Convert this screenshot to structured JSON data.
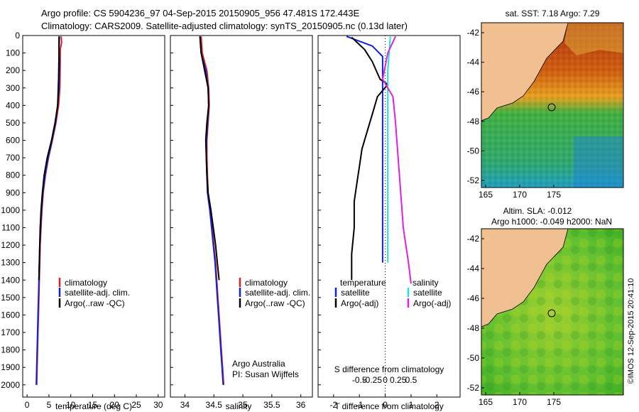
{
  "header": {
    "line1": "Argo profile: CS 5904236_97 04-Sep-2015 20150905_956 47.481S 172.443E",
    "line2": "Climatology: CARS2009. Satellite-adjusted climatology: synTS_20150905.nc (0.13d later)"
  },
  "colors": {
    "climatology": "#e02020",
    "satellite": "#1020e0",
    "argo": "#000000",
    "sat_salinity": "#20e0e0",
    "argo_salinity": "#e020e0"
  },
  "chart_data": [
    {
      "type": "line",
      "name": "temperature",
      "xlabel": "temperature (deg C)",
      "ylabel": "",
      "xlim": [
        -1,
        31.5
      ],
      "ylim": [
        0,
        2070
      ],
      "x_ticks": [
        "0",
        "5",
        "10",
        "15",
        "20",
        "25",
        "30"
      ],
      "y_ticks": [
        "0",
        "100",
        "200",
        "300",
        "400",
        "500",
        "600",
        "700",
        "800",
        "900",
        "1000",
        "1100",
        "1200",
        "1300",
        "1400",
        "1500",
        "1600",
        "1700",
        "1800",
        "1900",
        "2000"
      ],
      "legend": [
        "climatology",
        "satellite-adj. clim.",
        "Argo(..raw -QC)"
      ],
      "series": [
        {
          "color_key": "climatology",
          "points": [
            [
              7.8,
              5
            ],
            [
              7.9,
              40
            ],
            [
              7.6,
              80
            ],
            [
              7.6,
              150
            ],
            [
              7.5,
              300
            ],
            [
              7.2,
              400
            ],
            [
              6.6,
              500
            ],
            [
              5.8,
              600
            ],
            [
              4.9,
              700
            ],
            [
              4.2,
              800
            ],
            [
              3.7,
              900
            ],
            [
              3.4,
              1000
            ],
            [
              3.2,
              1100
            ],
            [
              3.0,
              1200
            ],
            [
              2.9,
              1300
            ],
            [
              2.8,
              1400
            ],
            [
              2.7,
              1500
            ],
            [
              2.6,
              1600
            ],
            [
              2.5,
              1700
            ],
            [
              2.4,
              1800
            ],
            [
              2.3,
              1900
            ],
            [
              2.2,
              2000
            ]
          ]
        },
        {
          "color_key": "satellite",
          "points": [
            [
              7.4,
              5
            ],
            [
              7.3,
              80
            ],
            [
              7.4,
              150
            ],
            [
              7.3,
              300
            ],
            [
              7.0,
              400
            ],
            [
              6.5,
              500
            ],
            [
              5.7,
              600
            ],
            [
              4.8,
              700
            ],
            [
              4.1,
              800
            ],
            [
              3.6,
              900
            ],
            [
              3.3,
              1000
            ],
            [
              3.1,
              1100
            ],
            [
              2.9,
              1200
            ],
            [
              2.8,
              1300
            ],
            [
              2.7,
              1400
            ],
            [
              2.6,
              1500
            ],
            [
              2.5,
              1600
            ],
            [
              2.4,
              1700
            ],
            [
              2.3,
              1800
            ],
            [
              2.2,
              1900
            ],
            [
              2.1,
              2000
            ]
          ]
        },
        {
          "color_key": "argo",
          "points": [
            [
              7.3,
              5
            ],
            [
              7.3,
              100
            ],
            [
              7.2,
              250
            ],
            [
              7.0,
              400
            ],
            [
              6.4,
              500
            ],
            [
              5.6,
              600
            ],
            [
              4.6,
              700
            ],
            [
              3.9,
              800
            ],
            [
              3.5,
              900
            ],
            [
              3.2,
              1000
            ],
            [
              3.0,
              1100
            ],
            [
              2.9,
              1200
            ],
            [
              2.8,
              1300
            ],
            [
              2.7,
              1400
            ]
          ]
        }
      ]
    },
    {
      "type": "line",
      "name": "salinity",
      "xlabel": "salinity",
      "xlim": [
        33.75,
        36.2
      ],
      "ylim": [
        0,
        2070
      ],
      "x_ticks": [
        "34",
        "34.5",
        "35",
        "35.5",
        "36"
      ],
      "legend": [
        "climatology",
        "satellite-adj. clim.",
        "Argo(..raw -QC)"
      ],
      "annotation": [
        "Argo Australia",
        "PI: Susan Wijffels"
      ],
      "series": [
        {
          "color_key": "climatology",
          "points": [
            [
              34.28,
              5
            ],
            [
              34.3,
              100
            ],
            [
              34.38,
              200
            ],
            [
              34.41,
              300
            ],
            [
              34.42,
              400
            ],
            [
              34.4,
              500
            ],
            [
              34.38,
              600
            ],
            [
              34.38,
              700
            ],
            [
              34.39,
              800
            ],
            [
              34.4,
              900
            ],
            [
              34.44,
              1000
            ],
            [
              34.47,
              1100
            ],
            [
              34.5,
              1200
            ],
            [
              34.53,
              1300
            ],
            [
              34.55,
              1400
            ],
            [
              34.57,
              1500
            ],
            [
              34.59,
              1600
            ],
            [
              34.61,
              1700
            ],
            [
              34.63,
              1800
            ],
            [
              34.65,
              1900
            ],
            [
              34.67,
              2000
            ]
          ]
        },
        {
          "color_key": "satellite",
          "points": [
            [
              34.26,
              5
            ],
            [
              34.28,
              100
            ],
            [
              34.36,
              200
            ],
            [
              34.4,
              300
            ],
            [
              34.41,
              400
            ],
            [
              34.39,
              500
            ],
            [
              34.37,
              600
            ],
            [
              34.37,
              700
            ],
            [
              34.38,
              800
            ],
            [
              34.39,
              900
            ],
            [
              34.43,
              1000
            ],
            [
              34.46,
              1100
            ],
            [
              34.49,
              1200
            ],
            [
              34.52,
              1300
            ],
            [
              34.54,
              1400
            ],
            [
              34.56,
              1500
            ],
            [
              34.58,
              1600
            ],
            [
              34.6,
              1700
            ],
            [
              34.62,
              1800
            ],
            [
              34.64,
              1900
            ],
            [
              34.66,
              2000
            ]
          ]
        },
        {
          "color_key": "argo",
          "points": [
            [
              34.26,
              5
            ],
            [
              34.28,
              100
            ],
            [
              34.34,
              200
            ],
            [
              34.4,
              300
            ],
            [
              34.41,
              400
            ],
            [
              34.38,
              500
            ],
            [
              34.36,
              600
            ],
            [
              34.37,
              700
            ],
            [
              34.38,
              800
            ],
            [
              34.4,
              900
            ],
            [
              34.45,
              1000
            ],
            [
              34.49,
              1100
            ],
            [
              34.53,
              1200
            ],
            [
              34.56,
              1300
            ],
            [
              34.59,
              1400
            ]
          ]
        }
      ]
    },
    {
      "type": "line",
      "name": "difference",
      "xlabel": "T difference from climatology",
      "xlabel_top": "S difference from climatology",
      "xlim": [
        -2.6,
        2.9
      ],
      "ylim": [
        0,
        2070
      ],
      "x_ticks": [
        "-2",
        "-1",
        "0",
        "1",
        "2"
      ],
      "x_ticks_top": [
        "-0.5",
        "-0.25",
        "0",
        "0.25",
        "0.5"
      ],
      "legend_left": [
        "temperature",
        "satellite",
        "Argo(-adj)"
      ],
      "legend_right": [
        "salinity",
        "satellite",
        "Argo(-adj)"
      ],
      "series": [
        {
          "color_key": "satellite",
          "points": [
            [
              -1.5,
              5
            ],
            [
              -0.5,
              60
            ],
            [
              -0.1,
              120
            ],
            [
              -0.1,
              300
            ],
            [
              -0.1,
              600
            ],
            [
              -0.1,
              900
            ],
            [
              -0.1,
              1200
            ],
            [
              -0.1,
              1300
            ]
          ]
        },
        {
          "color_key": "argo",
          "points": [
            [
              -1.3,
              10
            ],
            [
              -0.8,
              80
            ],
            [
              -0.5,
              150
            ],
            [
              -0.2,
              250
            ],
            [
              0.1,
              280
            ],
            [
              -0.3,
              350
            ],
            [
              -0.5,
              450
            ],
            [
              -0.7,
              550
            ],
            [
              -0.9,
              650
            ],
            [
              -1.0,
              750
            ],
            [
              -1.1,
              850
            ],
            [
              -1.2,
              950
            ],
            [
              -1.2,
              1100
            ],
            [
              -1.3,
              1250
            ],
            [
              -1.3,
              1400
            ]
          ]
        },
        {
          "color_key": "sat_salinity",
          "points": [
            [
              0.2,
              5
            ],
            [
              0.1,
              200
            ],
            [
              0.1,
              500
            ],
            [
              0.1,
              900
            ],
            [
              0.1,
              1300
            ]
          ]
        },
        {
          "color_key": "argo_salinity",
          "points": [
            [
              0.4,
              5
            ],
            [
              0.1,
              100
            ],
            [
              -0.1,
              250
            ],
            [
              0.3,
              350
            ],
            [
              0.4,
              500
            ],
            [
              0.5,
              700
            ],
            [
              0.6,
              900
            ],
            [
              0.7,
              1100
            ],
            [
              0.9,
              1300
            ],
            [
              1.0,
              1420
            ]
          ]
        }
      ]
    }
  ],
  "maps": [
    {
      "title": "sat. SST: 7.18 Argo: 7.29",
      "y_ticks": [
        "-42",
        "-44",
        "-46",
        "-48",
        "-50",
        "-52"
      ],
      "x_ticks": [
        "165",
        "170",
        "175"
      ]
    },
    {
      "title_line1": "Altim. SLA: -0.012",
      "title_line2": "Argo h1000: -0.049 h2000: NaN",
      "y_ticks": [
        "-42",
        "-44",
        "-46",
        "-48",
        "-50",
        "-52"
      ],
      "x_ticks": [
        "165",
        "170",
        "175"
      ]
    }
  ],
  "credit": "©IMOS 12-Sep-2015 20:41:10"
}
